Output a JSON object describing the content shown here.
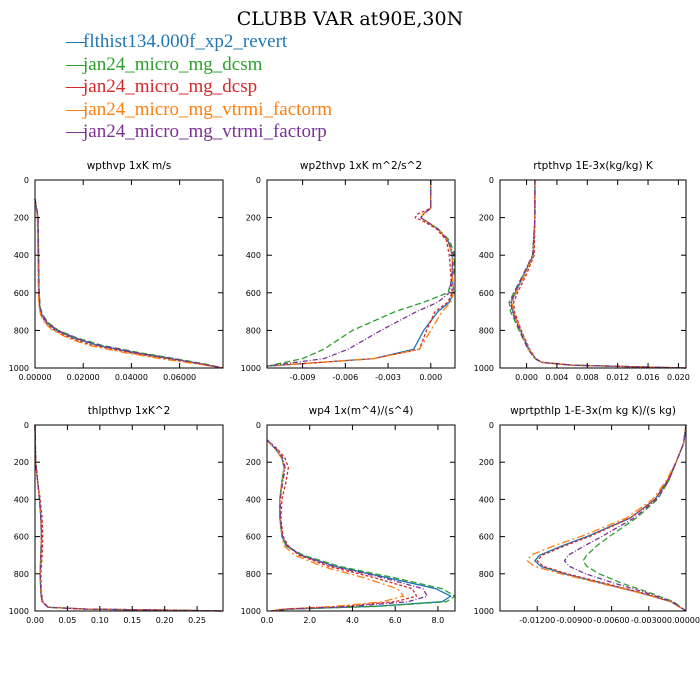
{
  "title": "CLUBB VAR at90E,30N",
  "legend": [
    {
      "label": "flthist134.000f_xp2_revert",
      "color": "#1f77b4"
    },
    {
      "label": "jan24_micro_mg_dcsm",
      "color": "#2ca02c"
    },
    {
      "label": "jan24_micro_mg_dcsp",
      "color": "#d62728"
    },
    {
      "label": "jan24_micro_mg_vtrmi_factorm",
      "color": "#ff7f0e"
    },
    {
      "label": "jan24_micro_mg_vtrmi_factorp",
      "color": "#7b3294"
    }
  ],
  "chart_data": [
    {
      "type": "line",
      "title": "wpthvp   1xK m/s",
      "xlim": [
        0.0,
        0.078
      ],
      "ylim": [
        0,
        1000
      ],
      "xticks": [
        0.0,
        0.02,
        0.04,
        0.06
      ],
      "xtick_labels": [
        "0.00000",
        "0.02000",
        "0.04000",
        "0.06000"
      ],
      "yticks": [
        0,
        200,
        400,
        600,
        800,
        1000
      ],
      "ytick_labels": [
        "0",
        "200",
        "400",
        "600",
        "800",
        "1000"
      ],
      "y": [
        100,
        200,
        400,
        600,
        680,
        720,
        760,
        800,
        840,
        880,
        920,
        950,
        980,
        1000
      ],
      "series": [
        {
          "name": "flthist134.000f_xp2_revert",
          "x": [
            0.0,
            0.0012,
            0.0014,
            0.0016,
            0.002,
            0.003,
            0.005,
            0.009,
            0.016,
            0.026,
            0.042,
            0.056,
            0.07,
            0.078
          ]
        },
        {
          "name": "jan24_micro_mg_dcsm",
          "x": [
            0.0,
            0.0013,
            0.0015,
            0.0017,
            0.0022,
            0.0033,
            0.0056,
            0.0098,
            0.0175,
            0.028,
            0.044,
            0.058,
            0.071,
            0.078
          ]
        },
        {
          "name": "jan24_micro_mg_dcsp",
          "x": [
            0.0,
            0.0011,
            0.0013,
            0.0015,
            0.0019,
            0.0027,
            0.0045,
            0.0082,
            0.0145,
            0.024,
            0.04,
            0.054,
            0.069,
            0.078
          ]
        },
        {
          "name": "jan24_micro_mg_vtrmi_factorm",
          "x": [
            0.0,
            0.001,
            0.0012,
            0.0014,
            0.0017,
            0.0024,
            0.004,
            0.0074,
            0.0135,
            0.0225,
            0.038,
            0.052,
            0.068,
            0.078
          ]
        },
        {
          "name": "jan24_micro_mg_vtrmi_factorp",
          "x": [
            0.0,
            0.0013,
            0.0015,
            0.0017,
            0.0021,
            0.0031,
            0.0053,
            0.0094,
            0.0168,
            0.027,
            0.043,
            0.057,
            0.07,
            0.078
          ]
        }
      ]
    },
    {
      "type": "line",
      "title": "wp2thvp   1xK m^2/s^2",
      "xlim": [
        -0.0115,
        0.0017
      ],
      "ylim": [
        0,
        1000
      ],
      "xticks": [
        -0.009,
        -0.006,
        -0.003,
        0.0
      ],
      "xtick_labels": [
        "-0.009",
        "-0.006",
        "-0.003",
        "0.000"
      ],
      "yticks": [
        0,
        200,
        400,
        600,
        800,
        1000
      ],
      "ytick_labels": [
        "0",
        "200",
        "400",
        "600",
        "800",
        "1000"
      ],
      "y": [
        0,
        150,
        180,
        200,
        220,
        260,
        320,
        400,
        500,
        600,
        650,
        700,
        800,
        900,
        950,
        990
      ],
      "series": [
        {
          "name": "flthist134.000f_xp2_revert",
          "x": [
            0.0,
            0.0,
            -0.0005,
            -0.0007,
            -0.0003,
            0.0005,
            0.0012,
            0.0015,
            0.0015,
            0.0016,
            0.0013,
            0.0005,
            -0.0005,
            -0.0012,
            -0.004,
            -0.0115
          ]
        },
        {
          "name": "jan24_micro_mg_dcsm",
          "x": [
            0.0,
            0.0,
            -0.0005,
            -0.0007,
            -0.0003,
            0.0005,
            0.0013,
            0.0017,
            0.0016,
            0.0012,
            -0.0005,
            -0.0025,
            -0.0055,
            -0.0075,
            -0.009,
            -0.0115
          ]
        },
        {
          "name": "jan24_micro_mg_dcsp",
          "x": [
            0.0,
            0.0,
            -0.0009,
            -0.0011,
            -0.0005,
            0.0004,
            0.0011,
            0.0013,
            0.0014,
            0.0015,
            0.0012,
            0.0003,
            -0.0003,
            -0.0008,
            -0.004,
            -0.0115
          ]
        },
        {
          "name": "jan24_micro_mg_vtrmi_factorm",
          "x": [
            0.0,
            0.0,
            -0.0005,
            -0.0007,
            -0.0003,
            0.0005,
            0.0012,
            0.0015,
            0.0015,
            0.0016,
            0.0014,
            0.0008,
            0.0,
            -0.0008,
            -0.004,
            -0.0115
          ]
        },
        {
          "name": "jan24_micro_mg_vtrmi_factorp",
          "x": [
            0.0,
            0.0,
            -0.0005,
            -0.0007,
            -0.0003,
            0.0005,
            0.0012,
            0.0016,
            0.0015,
            0.0013,
            0.0005,
            -0.001,
            -0.0035,
            -0.0058,
            -0.0075,
            -0.0115
          ]
        }
      ]
    },
    {
      "type": "line",
      "title": "rtpthvp   1E-3x(kg/kg) K",
      "xlim": [
        -0.0035,
        0.021
      ],
      "ylim": [
        0,
        1000
      ],
      "xticks": [
        0.0,
        0.004,
        0.008,
        0.012,
        0.016,
        0.02
      ],
      "xtick_labels": [
        "0.000",
        "0.004",
        "0.008",
        "0.012",
        "0.016",
        "0.020"
      ],
      "yticks": [
        0,
        200,
        400,
        600,
        800,
        1000
      ],
      "ytick_labels": [
        "0",
        "200",
        "400",
        "600",
        "800",
        "1000"
      ],
      "y": [
        0,
        200,
        400,
        500,
        600,
        650,
        700,
        800,
        900,
        950,
        970,
        985,
        1000
      ],
      "series": [
        {
          "name": "flthist134.000f_xp2_revert",
          "x": [
            0.0011,
            0.0011,
            0.0009,
            -0.0003,
            -0.0015,
            -0.002,
            -0.0018,
            -0.0008,
            0.0003,
            0.0012,
            0.002,
            0.006,
            0.021
          ]
        },
        {
          "name": "jan24_micro_mg_dcsm",
          "x": [
            0.0011,
            0.0011,
            0.0008,
            -0.0004,
            -0.0017,
            -0.0023,
            -0.0021,
            -0.001,
            0.0002,
            0.0011,
            0.002,
            0.006,
            0.021
          ]
        },
        {
          "name": "jan24_micro_mg_dcsp",
          "x": [
            0.0011,
            0.0011,
            0.001,
            0.0,
            -0.0012,
            -0.0017,
            -0.0016,
            -0.0007,
            0.0004,
            0.0012,
            0.002,
            0.006,
            0.021
          ]
        },
        {
          "name": "jan24_micro_mg_vtrmi_factorm",
          "x": [
            0.0011,
            0.0011,
            0.0009,
            -0.0002,
            -0.0014,
            -0.0019,
            -0.0017,
            -0.0008,
            0.0003,
            0.0012,
            0.002,
            0.006,
            0.021
          ]
        },
        {
          "name": "jan24_micro_mg_vtrmi_factorp",
          "x": [
            0.0011,
            0.0011,
            0.0008,
            -0.0004,
            -0.0016,
            -0.0021,
            -0.0019,
            -0.0009,
            0.0002,
            0.0011,
            0.002,
            0.006,
            0.021
          ]
        }
      ]
    },
    {
      "type": "line",
      "title": "thlpthvp   1xK^2",
      "xlim": [
        0.0,
        0.29
      ],
      "ylim": [
        0,
        1000
      ],
      "xticks": [
        0.0,
        0.05,
        0.1,
        0.15,
        0.2,
        0.25
      ],
      "xtick_labels": [
        "0.00",
        "0.05",
        "0.10",
        "0.15",
        "0.20",
        "0.25"
      ],
      "yticks": [
        0,
        200,
        400,
        600,
        800,
        1000
      ],
      "ytick_labels": [
        "0",
        "200",
        "400",
        "600",
        "800",
        "1000"
      ],
      "y": [
        0,
        200,
        300,
        400,
        500,
        600,
        700,
        800,
        900,
        950,
        980,
        990,
        995,
        1000
      ],
      "series": [
        {
          "name": "flthist134.000f_xp2_revert",
          "x": [
            0.0,
            0.001,
            0.004,
            0.007,
            0.009,
            0.01,
            0.009,
            0.008,
            0.009,
            0.011,
            0.02,
            0.08,
            0.2,
            0.29
          ]
        },
        {
          "name": "jan24_micro_mg_dcsm",
          "x": [
            0.0,
            0.001,
            0.004,
            0.007,
            0.009,
            0.01,
            0.009,
            0.008,
            0.009,
            0.011,
            0.02,
            0.08,
            0.2,
            0.29
          ]
        },
        {
          "name": "jan24_micro_mg_dcsp",
          "x": [
            0.0,
            0.001,
            0.004,
            0.008,
            0.011,
            0.012,
            0.011,
            0.009,
            0.01,
            0.012,
            0.021,
            0.08,
            0.2,
            0.29
          ]
        },
        {
          "name": "jan24_micro_mg_vtrmi_factorm",
          "x": [
            0.0,
            0.001,
            0.004,
            0.007,
            0.009,
            0.01,
            0.009,
            0.008,
            0.009,
            0.011,
            0.02,
            0.08,
            0.2,
            0.29
          ]
        },
        {
          "name": "jan24_micro_mg_vtrmi_factorp",
          "x": [
            0.0,
            0.001,
            0.004,
            0.007,
            0.009,
            0.01,
            0.009,
            0.008,
            0.009,
            0.011,
            0.02,
            0.08,
            0.2,
            0.29
          ]
        }
      ]
    },
    {
      "type": "line",
      "title": "wp4   1x(m^4)/(s^4)",
      "xlim": [
        0.0,
        8.8
      ],
      "ylim": [
        0,
        1000
      ],
      "xticks": [
        0.0,
        2.0,
        4.0,
        6.0,
        8.0
      ],
      "xtick_labels": [
        "0.0",
        "2.0",
        "4.0",
        "6.0",
        "8.0"
      ],
      "yticks": [
        0,
        200,
        400,
        600,
        800,
        1000
      ],
      "ytick_labels": [
        "0",
        "200",
        "400",
        "600",
        "800",
        "1000"
      ],
      "y": [
        80,
        130,
        180,
        230,
        300,
        400,
        500,
        600,
        650,
        700,
        760,
        820,
        880,
        920,
        950,
        975,
        990,
        1000
      ],
      "series": [
        {
          "name": "flthist134.000f_xp2_revert",
          "x": [
            0.0,
            0.4,
            0.7,
            0.8,
            0.7,
            0.6,
            0.6,
            0.7,
            0.9,
            1.6,
            3.2,
            5.6,
            7.9,
            8.6,
            8.2,
            5.0,
            1.0,
            0.2
          ]
        },
        {
          "name": "jan24_micro_mg_dcsm",
          "x": [
            0.0,
            0.4,
            0.7,
            0.8,
            0.7,
            0.6,
            0.6,
            0.7,
            0.9,
            1.7,
            3.4,
            5.9,
            8.2,
            8.8,
            8.4,
            5.2,
            1.0,
            0.2
          ]
        },
        {
          "name": "jan24_micro_mg_dcsp",
          "x": [
            0.0,
            0.5,
            0.85,
            1.0,
            0.9,
            0.7,
            0.65,
            0.75,
            1.0,
            1.5,
            2.9,
            5.0,
            6.8,
            7.0,
            6.0,
            3.5,
            0.8,
            0.2
          ]
        },
        {
          "name": "jan24_micro_mg_vtrmi_factorm",
          "x": [
            0.0,
            0.4,
            0.7,
            0.8,
            0.7,
            0.6,
            0.6,
            0.7,
            0.8,
            1.3,
            2.6,
            4.5,
            6.1,
            6.4,
            5.4,
            3.2,
            0.7,
            0.2
          ]
        },
        {
          "name": "jan24_micro_mg_vtrmi_factorp",
          "x": [
            0.0,
            0.45,
            0.75,
            0.85,
            0.75,
            0.62,
            0.62,
            0.72,
            0.95,
            1.6,
            3.1,
            5.4,
            7.3,
            7.5,
            6.6,
            4.0,
            0.9,
            0.2
          ]
        }
      ]
    },
    {
      "type": "line",
      "title": "wprtpthlp   1-E-3x(m kg K)/(s kg)",
      "xlim": [
        -0.015,
        0.0
      ],
      "ylim": [
        0,
        1000
      ],
      "xticks": [
        -0.012,
        -0.009,
        -0.006,
        -0.003,
        0.0
      ],
      "xtick_labels": [
        "-0.01200",
        "-0.00900",
        "-0.00600",
        "-0.00300",
        "0.000000"
      ],
      "yticks": [
        0,
        200,
        400,
        600,
        800,
        1000
      ],
      "ytick_labels": [
        "0",
        "200",
        "400",
        "600",
        "800",
        "1000"
      ],
      "y": [
        0,
        100,
        200,
        300,
        400,
        500,
        600,
        650,
        700,
        730,
        760,
        800,
        850,
        900,
        950,
        1000
      ],
      "series": [
        {
          "name": "flthist134.000f_xp2_revert",
          "x": [
            0.0,
            -0.0002,
            -0.0008,
            -0.0015,
            -0.0025,
            -0.0045,
            -0.008,
            -0.01,
            -0.0118,
            -0.0122,
            -0.0117,
            -0.0098,
            -0.0068,
            -0.0038,
            -0.0012,
            0.0
          ]
        },
        {
          "name": "jan24_micro_mg_dcsm",
          "x": [
            0.0,
            -0.0002,
            -0.0008,
            -0.0014,
            -0.0023,
            -0.004,
            -0.0062,
            -0.0072,
            -0.008,
            -0.0083,
            -0.008,
            -0.007,
            -0.0052,
            -0.003,
            -0.001,
            0.0
          ]
        },
        {
          "name": "jan24_micro_mg_dcsp",
          "x": [
            0.0,
            -0.0002,
            -0.0008,
            -0.0015,
            -0.0025,
            -0.0045,
            -0.0078,
            -0.0098,
            -0.0116,
            -0.012,
            -0.0115,
            -0.0096,
            -0.0066,
            -0.0037,
            -0.0012,
            0.0
          ]
        },
        {
          "name": "jan24_micro_mg_vtrmi_factorm",
          "x": [
            0.0,
            -0.0002,
            -0.0008,
            -0.0016,
            -0.0027,
            -0.0048,
            -0.0085,
            -0.0107,
            -0.0125,
            -0.0128,
            -0.0122,
            -0.0101,
            -0.007,
            -0.0039,
            -0.0012,
            0.0
          ]
        },
        {
          "name": "jan24_micro_mg_vtrmi_factorp",
          "x": [
            0.0,
            -0.0002,
            -0.0008,
            -0.0014,
            -0.0024,
            -0.0042,
            -0.0068,
            -0.0082,
            -0.0095,
            -0.0098,
            -0.0094,
            -0.0081,
            -0.0058,
            -0.0033,
            -0.0011,
            0.0
          ]
        }
      ]
    }
  ]
}
